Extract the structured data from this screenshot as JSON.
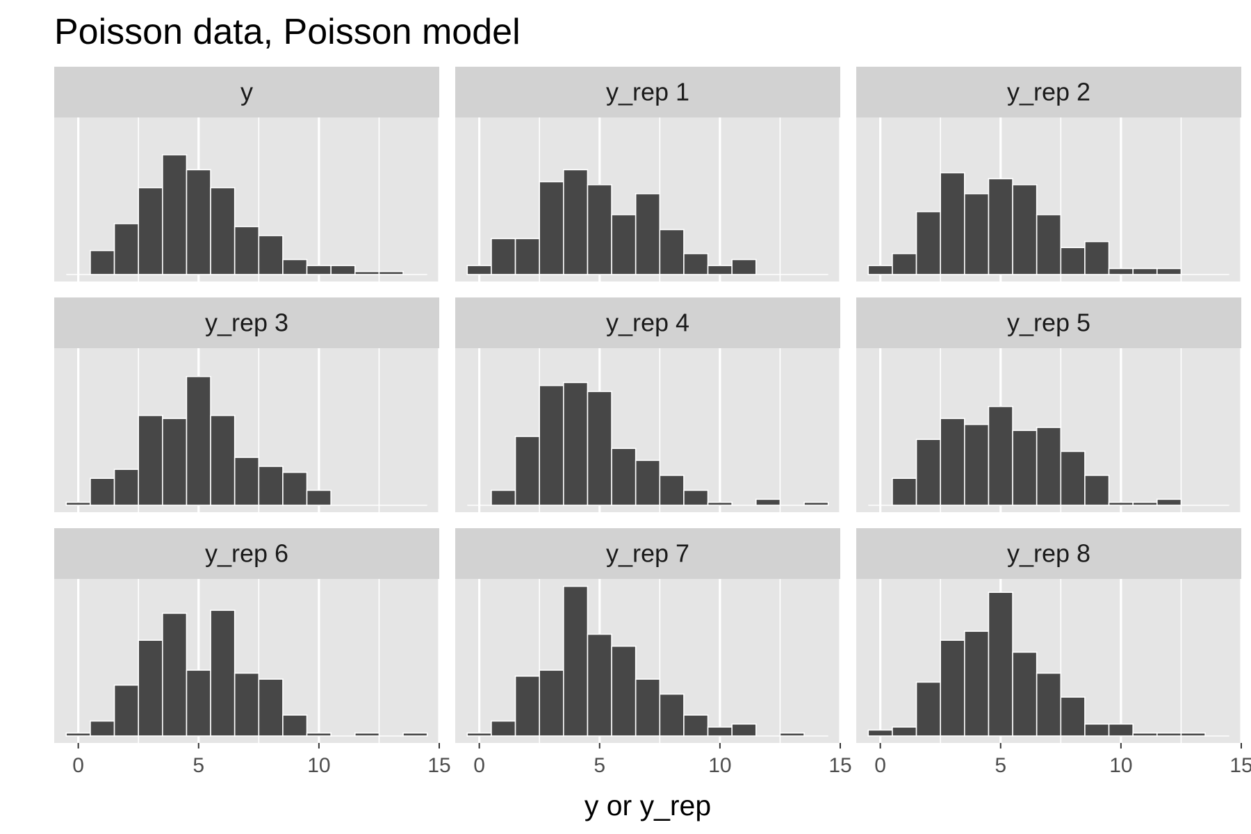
{
  "chart_data": {
    "type": "bar",
    "title": "Poisson data, Poisson model",
    "xlabel": "y or y_rep",
    "ylabel": "",
    "xlim": [
      -1,
      15
    ],
    "x_ticks": [
      0,
      5,
      10,
      15
    ],
    "bin_width": 1,
    "bin_centers": [
      0,
      1,
      2,
      3,
      4,
      5,
      6,
      7,
      8,
      9,
      10,
      11,
      12,
      13,
      14
    ],
    "facet_layout": "3 x 3 grid, shared x axis",
    "grid": true,
    "colors": {
      "bar_fill": "#474747",
      "bar_outline": "#ffffff",
      "panel_background": "#e5e5e5",
      "strip_background": "#d2d2d2",
      "grid": "#ffffff"
    },
    "panels": [
      {
        "label": "y",
        "values": [
          0,
          8,
          17,
          29,
          40,
          35,
          29,
          16,
          13,
          5,
          3,
          3,
          1,
          1,
          0
        ]
      },
      {
        "label": "y_rep 1",
        "values": [
          3,
          12,
          12,
          31,
          35,
          30,
          20,
          27,
          15,
          7,
          3,
          5,
          0,
          0,
          0
        ]
      },
      {
        "label": "y_rep 2",
        "values": [
          3,
          7,
          21,
          34,
          27,
          32,
          30,
          20,
          9,
          11,
          2,
          2,
          2,
          0,
          0
        ]
      },
      {
        "label": "y_rep 3",
        "values": [
          1,
          9,
          12,
          30,
          29,
          43,
          30,
          16,
          13,
          11,
          5,
          0,
          0,
          0,
          0
        ]
      },
      {
        "label": "y_rep 4",
        "values": [
          0,
          5,
          23,
          40,
          41,
          38,
          19,
          15,
          10,
          5,
          1,
          0,
          2,
          0,
          1
        ]
      },
      {
        "label": "y_rep 5",
        "values": [
          0,
          9,
          22,
          29,
          27,
          33,
          25,
          26,
          18,
          10,
          1,
          1,
          2,
          0,
          0
        ]
      },
      {
        "label": "y_rep 6",
        "values": [
          1,
          5,
          17,
          32,
          41,
          22,
          42,
          21,
          19,
          7,
          1,
          0,
          1,
          0,
          1
        ]
      },
      {
        "label": "y_rep 7",
        "values": [
          1,
          5,
          20,
          22,
          50,
          34,
          30,
          19,
          14,
          7,
          3,
          4,
          0,
          1,
          0
        ]
      },
      {
        "label": "y_rep 8",
        "values": [
          2,
          3,
          18,
          32,
          35,
          48,
          28,
          21,
          13,
          4,
          4,
          1,
          1,
          1,
          0
        ]
      }
    ]
  }
}
